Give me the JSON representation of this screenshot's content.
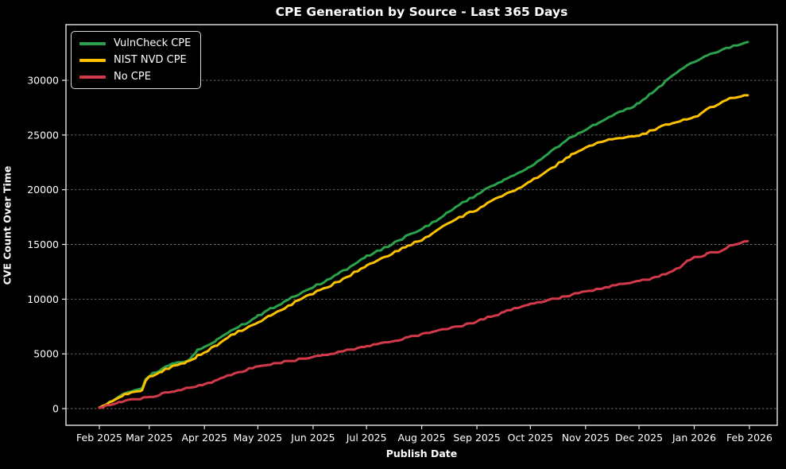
{
  "chart_data": {
    "type": "line",
    "title": "CPE Generation by Source - Last 365 Days",
    "xlabel": "Publish Date",
    "ylabel": "CVE Count Over Time",
    "background_color": "#000000",
    "axis_color": "#e8e8e8",
    "grid": "horizontal dashed",
    "grid_color": "#8a8a8a",
    "legend_position": "upper left",
    "ylim": [
      -1500,
      35100
    ],
    "y_ticks": [
      0,
      5000,
      10000,
      15000,
      20000,
      25000,
      30000
    ],
    "y_tick_labels": [
      "0",
      "5000",
      "10000",
      "15000",
      "20000",
      "25000",
      "30000"
    ],
    "x_ticks": [
      {
        "label": "Feb 2025",
        "day": 0
      },
      {
        "label": "Mar 2025",
        "day": 28
      },
      {
        "label": "Apr 2025",
        "day": 59
      },
      {
        "label": "May 2025",
        "day": 89
      },
      {
        "label": "Jun 2025",
        "day": 120
      },
      {
        "label": "Jul 2025",
        "day": 150
      },
      {
        "label": "Aug 2025",
        "day": 181
      },
      {
        "label": "Sep 2025",
        "day": 212
      },
      {
        "label": "Oct 2025",
        "day": 242
      },
      {
        "label": "Nov 2025",
        "day": 273
      },
      {
        "label": "Dec 2025",
        "day": 303
      },
      {
        "label": "Jan 2026",
        "day": 334
      },
      {
        "label": "Feb 2026",
        "day": 365
      }
    ],
    "series": [
      {
        "name": "VulnCheck CPE",
        "color": "#2aa14a",
        "points": [
          [
            0,
            100
          ],
          [
            7,
            700
          ],
          [
            14,
            1300
          ],
          [
            21,
            1700
          ],
          [
            24,
            1900
          ],
          [
            26,
            2700
          ],
          [
            28,
            3000
          ],
          [
            35,
            3600
          ],
          [
            42,
            4100
          ],
          [
            49,
            4400
          ],
          [
            52,
            4700
          ],
          [
            55,
            5300
          ],
          [
            59,
            5700
          ],
          [
            66,
            6300
          ],
          [
            74,
            7200
          ],
          [
            82,
            7800
          ],
          [
            89,
            8450
          ],
          [
            96,
            9100
          ],
          [
            104,
            9800
          ],
          [
            112,
            10500
          ],
          [
            120,
            11100
          ],
          [
            128,
            11700
          ],
          [
            135,
            12400
          ],
          [
            143,
            13100
          ],
          [
            150,
            13900
          ],
          [
            158,
            14500
          ],
          [
            166,
            15200
          ],
          [
            173,
            15800
          ],
          [
            181,
            16400
          ],
          [
            189,
            17200
          ],
          [
            196,
            18000
          ],
          [
            204,
            18800
          ],
          [
            212,
            19500
          ],
          [
            220,
            20300
          ],
          [
            227,
            20900
          ],
          [
            235,
            21500
          ],
          [
            242,
            22100
          ],
          [
            250,
            23000
          ],
          [
            258,
            24000
          ],
          [
            265,
            24800
          ],
          [
            273,
            25500
          ],
          [
            280,
            26100
          ],
          [
            288,
            26800
          ],
          [
            296,
            27300
          ],
          [
            303,
            27900
          ],
          [
            310,
            28800
          ],
          [
            318,
            29900
          ],
          [
            326,
            30900
          ],
          [
            334,
            31700
          ],
          [
            341,
            32200
          ],
          [
            348,
            32700
          ],
          [
            356,
            33100
          ],
          [
            364,
            33500
          ]
        ]
      },
      {
        "name": "NIST NVD CPE",
        "color": "#fcc200",
        "points": [
          [
            0,
            80
          ],
          [
            7,
            650
          ],
          [
            14,
            1250
          ],
          [
            21,
            1500
          ],
          [
            24,
            1600
          ],
          [
            26,
            2500
          ],
          [
            28,
            2850
          ],
          [
            35,
            3400
          ],
          [
            42,
            3900
          ],
          [
            49,
            4200
          ],
          [
            52,
            4500
          ],
          [
            55,
            4800
          ],
          [
            59,
            5100
          ],
          [
            66,
            5800
          ],
          [
            74,
            6700
          ],
          [
            82,
            7300
          ],
          [
            89,
            7850
          ],
          [
            96,
            8500
          ],
          [
            104,
            9200
          ],
          [
            112,
            9900
          ],
          [
            120,
            10500
          ],
          [
            128,
            11100
          ],
          [
            135,
            11700
          ],
          [
            143,
            12400
          ],
          [
            150,
            13100
          ],
          [
            158,
            13700
          ],
          [
            166,
            14300
          ],
          [
            173,
            14900
          ],
          [
            181,
            15400
          ],
          [
            189,
            16200
          ],
          [
            196,
            16900
          ],
          [
            204,
            17600
          ],
          [
            212,
            18200
          ],
          [
            220,
            18900
          ],
          [
            227,
            19500
          ],
          [
            235,
            20100
          ],
          [
            242,
            20700
          ],
          [
            250,
            21600
          ],
          [
            258,
            22400
          ],
          [
            265,
            23200
          ],
          [
            273,
            23900
          ],
          [
            280,
            24300
          ],
          [
            288,
            24600
          ],
          [
            296,
            24800
          ],
          [
            303,
            24900
          ],
          [
            310,
            25400
          ],
          [
            318,
            25900
          ],
          [
            326,
            26300
          ],
          [
            334,
            26600
          ],
          [
            341,
            27300
          ],
          [
            348,
            27900
          ],
          [
            355,
            28400
          ],
          [
            360,
            28550
          ],
          [
            364,
            28600
          ]
        ]
      },
      {
        "name": "No CPE",
        "color": "#d23a4a",
        "points": [
          [
            0,
            60
          ],
          [
            7,
            350
          ],
          [
            14,
            650
          ],
          [
            21,
            850
          ],
          [
            28,
            1050
          ],
          [
            35,
            1350
          ],
          [
            42,
            1600
          ],
          [
            49,
            1850
          ],
          [
            52,
            1950
          ],
          [
            59,
            2150
          ],
          [
            66,
            2600
          ],
          [
            74,
            3100
          ],
          [
            82,
            3500
          ],
          [
            89,
            3800
          ],
          [
            96,
            4000
          ],
          [
            104,
            4250
          ],
          [
            112,
            4500
          ],
          [
            120,
            4700
          ],
          [
            128,
            4950
          ],
          [
            135,
            5200
          ],
          [
            143,
            5450
          ],
          [
            150,
            5700
          ],
          [
            158,
            5950
          ],
          [
            166,
            6200
          ],
          [
            173,
            6500
          ],
          [
            181,
            6750
          ],
          [
            189,
            7050
          ],
          [
            196,
            7300
          ],
          [
            204,
            7600
          ],
          [
            212,
            7950
          ],
          [
            220,
            8400
          ],
          [
            227,
            8800
          ],
          [
            235,
            9200
          ],
          [
            242,
            9550
          ],
          [
            250,
            9800
          ],
          [
            258,
            10100
          ],
          [
            265,
            10400
          ],
          [
            273,
            10650
          ],
          [
            280,
            10900
          ],
          [
            288,
            11200
          ],
          [
            296,
            11400
          ],
          [
            303,
            11600
          ],
          [
            310,
            11900
          ],
          [
            318,
            12300
          ],
          [
            326,
            12900
          ],
          [
            330,
            13600
          ],
          [
            334,
            13800
          ],
          [
            341,
            14100
          ],
          [
            348,
            14400
          ],
          [
            355,
            14900
          ],
          [
            360,
            15100
          ],
          [
            364,
            15300
          ]
        ]
      }
    ]
  }
}
